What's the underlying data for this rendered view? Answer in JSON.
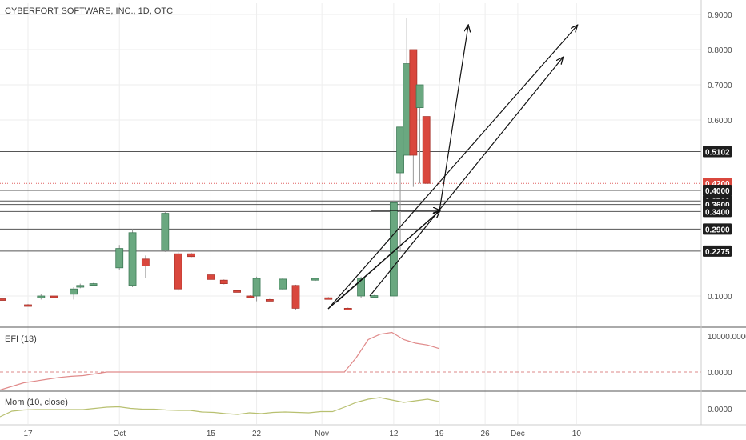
{
  "chart_data": [
    {
      "type": "candlestick",
      "title": "CYBERFORT SOFTWARE, INC., 1D, OTC",
      "x_ticks": [
        "17",
        "Oct",
        "15",
        "22",
        "Nov",
        "12",
        "19",
        "26",
        "Dec",
        "10"
      ],
      "y_ticks": [
        "0.9000",
        "0.8000",
        "0.7000",
        "0.6000",
        "0.1000"
      ],
      "ylim": [
        0.0,
        0.92
      ],
      "grid": true,
      "candles": [
        {
          "date": "Sep 12",
          "open": 0.08,
          "high": 0.095,
          "low": 0.06,
          "close": 0.092
        },
        {
          "date": "Sep 13",
          "open": 0.092,
          "high": 0.094,
          "low": 0.088,
          "close": 0.09
        },
        {
          "date": "Sep 17",
          "open": 0.075,
          "high": 0.077,
          "low": 0.072,
          "close": 0.073
        },
        {
          "date": "Sep 19",
          "open": 0.095,
          "high": 0.105,
          "low": 0.09,
          "close": 0.1
        },
        {
          "date": "Sep 21",
          "open": 0.1,
          "high": 0.101,
          "low": 0.096,
          "close": 0.097
        },
        {
          "date": "Sep 24",
          "open": 0.105,
          "high": 0.125,
          "low": 0.09,
          "close": 0.12
        },
        {
          "date": "Sep 25",
          "open": 0.125,
          "high": 0.135,
          "low": 0.122,
          "close": 0.13
        },
        {
          "date": "Sep 27",
          "open": 0.133,
          "high": 0.137,
          "low": 0.131,
          "close": 0.135
        },
        {
          "date": "Oct 1",
          "open": 0.18,
          "high": 0.245,
          "low": 0.175,
          "close": 0.235
        },
        {
          "date": "Oct 3",
          "open": 0.13,
          "high": 0.29,
          "low": 0.125,
          "close": 0.28
        },
        {
          "date": "Oct 5",
          "open": 0.205,
          "high": 0.215,
          "low": 0.15,
          "close": 0.185
        },
        {
          "date": "Oct 8",
          "open": 0.23,
          "high": 0.34,
          "low": 0.225,
          "close": 0.335
        },
        {
          "date": "Oct 10",
          "open": 0.22,
          "high": 0.225,
          "low": 0.115,
          "close": 0.12
        },
        {
          "date": "Oct 12",
          "open": 0.22,
          "high": 0.223,
          "low": 0.21,
          "close": 0.212
        },
        {
          "date": "Oct 15",
          "open": 0.16,
          "high": 0.162,
          "low": 0.145,
          "close": 0.147
        },
        {
          "date": "Oct 17",
          "open": 0.145,
          "high": 0.147,
          "low": 0.133,
          "close": 0.135
        },
        {
          "date": "Oct 19",
          "open": 0.115,
          "high": 0.117,
          "low": 0.111,
          "close": 0.113
        },
        {
          "date": "Oct 21",
          "open": 0.1,
          "high": 0.102,
          "low": 0.097,
          "close": 0.099
        },
        {
          "date": "Oct 22",
          "open": 0.1,
          "high": 0.155,
          "low": 0.085,
          "close": 0.15
        },
        {
          "date": "Oct 24",
          "open": 0.09,
          "high": 0.092,
          "low": 0.087,
          "close": 0.088
        },
        {
          "date": "Oct 26",
          "open": 0.12,
          "high": 0.15,
          "low": 0.118,
          "close": 0.148
        },
        {
          "date": "Oct 28",
          "open": 0.13,
          "high": 0.132,
          "low": 0.06,
          "close": 0.065
        },
        {
          "date": "Oct 31",
          "open": 0.145,
          "high": 0.152,
          "low": 0.143,
          "close": 0.15
        },
        {
          "date": "Nov 2",
          "open": 0.095,
          "high": 0.097,
          "low": 0.091,
          "close": 0.093
        },
        {
          "date": "Nov 5",
          "open": 0.065,
          "high": 0.067,
          "low": 0.061,
          "close": 0.063
        },
        {
          "date": "Nov 7",
          "open": 0.1,
          "high": 0.155,
          "low": 0.095,
          "close": 0.15
        },
        {
          "date": "Nov 9",
          "open": 0.098,
          "high": 0.103,
          "low": 0.097,
          "close": 0.101
        },
        {
          "date": "Nov 12",
          "open": 0.1,
          "high": 0.37,
          "low": 0.1,
          "close": 0.365
        },
        {
          "date": "Nov 13",
          "open": 0.45,
          "high": 0.58,
          "low": 0.225,
          "close": 0.58
        },
        {
          "date": "Nov 14",
          "open": 0.5,
          "high": 0.89,
          "low": 0.5,
          "close": 0.76
        },
        {
          "date": "Nov 15",
          "open": 0.8,
          "high": 0.8,
          "low": 0.41,
          "close": 0.5
        },
        {
          "date": "Nov 16",
          "open": 0.635,
          "high": 0.7,
          "low": 0.42,
          "close": 0.7
        },
        {
          "date": "Nov 17",
          "open": 0.61,
          "high": 0.61,
          "low": 0.42,
          "close": 0.42
        }
      ],
      "horizontal_levels": [
        0.5102,
        0.4,
        0.37,
        0.36,
        0.34,
        0.29,
        0.2275
      ],
      "current_price_line": 0.42,
      "price_badges": [
        {
          "label": "0.5102",
          "value": 0.5102,
          "style": "dark"
        },
        {
          "label": "0.4200",
          "value": 0.42,
          "style": "red"
        },
        {
          "label": "0.4000",
          "value": 0.4,
          "style": "dark"
        },
        {
          "label": "0.3700",
          "value": 0.37,
          "style": "dark"
        },
        {
          "label": "0.3600",
          "value": 0.36,
          "style": "dark"
        },
        {
          "label": "0.3400",
          "value": 0.34,
          "style": "dark"
        },
        {
          "label": "0.2900",
          "value": 0.29,
          "style": "dark"
        },
        {
          "label": "0.2275",
          "value": 0.2275,
          "style": "dark"
        }
      ],
      "colors": {
        "up": "#6aa880",
        "down": "#d9473d",
        "wick": "#999999",
        "level_line": "#555555",
        "price_line": "#e06060"
      }
    },
    {
      "type": "line",
      "title": "EFI (13)",
      "y_ticks": [
        "10000.0000",
        "0.0000"
      ],
      "values": [
        -5000,
        -4000,
        -3000,
        -2500,
        -2000,
        -1500,
        -1200,
        -1000,
        -500,
        0,
        0,
        0,
        0,
        0,
        0,
        0,
        0,
        0,
        0,
        0,
        0,
        0,
        0,
        0,
        0,
        0,
        0,
        0,
        0,
        0,
        4000,
        9000,
        10500,
        11000,
        9000,
        8000,
        7500,
        6500
      ],
      "zero_line": true,
      "color": "#e08a8a"
    },
    {
      "type": "line",
      "title": "Mom (10, close)",
      "y_ticks": [
        "0.0000"
      ],
      "values": [
        -0.1,
        -0.03,
        -0.015,
        -0.01,
        -0.01,
        -0.01,
        -0.01,
        -0.01,
        0.005,
        0.02,
        0.025,
        0.005,
        -0.005,
        -0.005,
        -0.015,
        -0.02,
        -0.02,
        -0.04,
        -0.045,
        -0.06,
        -0.07,
        -0.05,
        -0.06,
        -0.045,
        -0.04,
        -0.045,
        -0.05,
        -0.035,
        -0.035,
        0.02,
        0.08,
        0.12,
        0.14,
        0.11,
        0.08,
        0.1,
        0.12,
        0.09
      ],
      "color": "#b8c070"
    }
  ]
}
